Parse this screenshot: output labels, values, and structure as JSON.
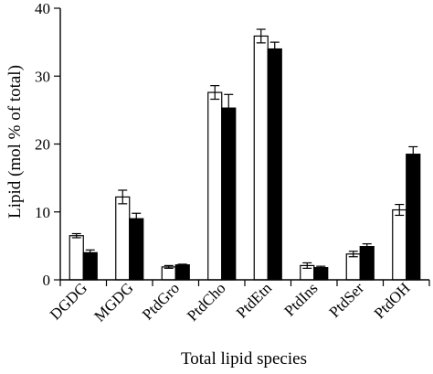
{
  "chart_data": {
    "type": "bar",
    "categories": [
      "DGDG",
      "MGDG",
      "PtdGro",
      "PtdCho",
      "PtdEtn",
      "PtdIns",
      "PtdSer",
      "PtdOH"
    ],
    "series": [
      {
        "color": "#ffffff",
        "values": [
          6.5,
          12.2,
          1.9,
          27.6,
          35.9,
          2.1,
          3.8,
          10.3
        ],
        "errors": [
          0.3,
          1.0,
          0.2,
          1.0,
          1.0,
          0.4,
          0.4,
          0.8
        ]
      },
      {
        "color": "#000000",
        "values": [
          4.0,
          9.0,
          2.2,
          25.3,
          34.0,
          1.8,
          4.9,
          18.5
        ],
        "errors": [
          0.4,
          0.8,
          0.1,
          2.0,
          1.0,
          0.2,
          0.4,
          1.1
        ]
      }
    ],
    "xlabel": "Total lipid species",
    "ylabel": "Lipid (mol % of total)",
    "ylim": [
      0,
      40
    ],
    "yticks": [
      "0",
      "10",
      "20",
      "30",
      "40"
    ],
    "grid": false,
    "legend": "none"
  }
}
